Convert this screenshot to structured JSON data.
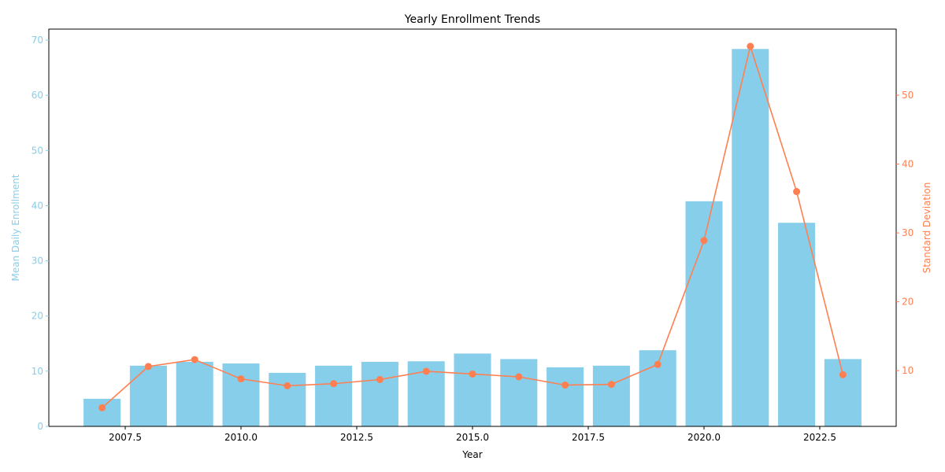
{
  "chart_data": {
    "type": "bar",
    "title": "Yearly Enrollment Trends",
    "xlabel": "Year",
    "x_ticks": [
      "2007.5",
      "2010.0",
      "2012.5",
      "2015.0",
      "2017.5",
      "2020.0",
      "2022.5"
    ],
    "x_tick_values": [
      2007.5,
      2010.0,
      2012.5,
      2015.0,
      2017.5,
      2020.0,
      2022.5
    ],
    "xlim": [
      2005.85,
      2024.15
    ],
    "categories": [
      2007,
      2008,
      2009,
      2010,
      2011,
      2012,
      2013,
      2014,
      2015,
      2016,
      2017,
      2018,
      2019,
      2020,
      2021,
      2022,
      2023
    ],
    "y_left": {
      "label": "Mean Daily Enrollment",
      "color": "#87CEEB",
      "ylim": [
        0,
        72
      ],
      "ticks": [
        "0",
        "10",
        "20",
        "30",
        "40",
        "50",
        "60",
        "70"
      ],
      "tick_values": [
        0,
        10,
        20,
        30,
        40,
        50,
        60,
        70
      ]
    },
    "y_right": {
      "label": "Standard Deviation",
      "color": "#FF7F50",
      "ylim": [
        1.9,
        59.6
      ],
      "ticks": [
        "10",
        "20",
        "30",
        "40",
        "50"
      ],
      "tick_values": [
        10,
        20,
        30,
        40,
        50
      ]
    },
    "series": [
      {
        "type": "bar",
        "axis": "left",
        "values": [
          5.0,
          11.0,
          11.7,
          11.4,
          9.7,
          11.0,
          11.7,
          11.8,
          13.2,
          12.2,
          10.7,
          11.0,
          13.8,
          40.8,
          68.4,
          36.9,
          12.2
        ]
      },
      {
        "type": "line",
        "axis": "right",
        "marker": "circle",
        "values": [
          4.6,
          10.6,
          11.6,
          8.8,
          7.8,
          8.1,
          8.7,
          9.9,
          9.5,
          9.1,
          7.9,
          8.0,
          10.9,
          28.9,
          57.1,
          36.0,
          9.4
        ]
      }
    ],
    "grid": false
  }
}
